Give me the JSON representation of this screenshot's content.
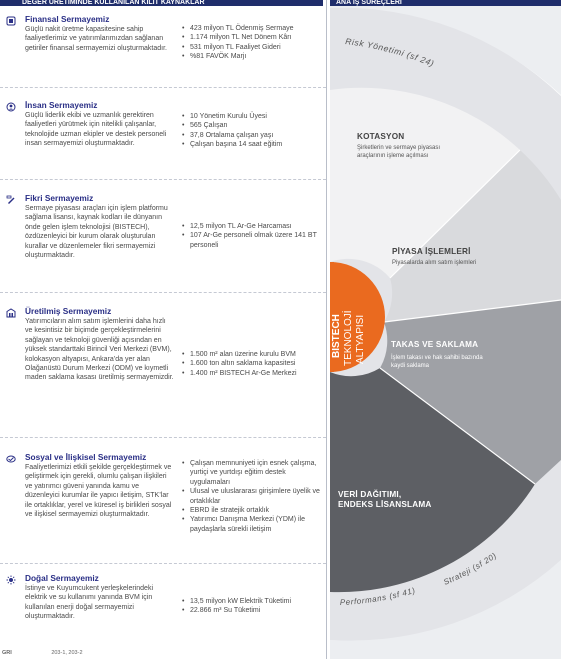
{
  "header": {
    "left_title": "DEĞER ÜRETİMİNDE KULLANILAN KILIT KAYNAKLAR",
    "right_title": "ANA İŞ SÜREÇLERİ"
  },
  "capitals": [
    {
      "icon": "financial-capital-icon",
      "title": "Finansal Sermayemiz",
      "description": "Güçlü nakit üretme kapasitesine sahip faaliyetlerimiz ve yatırımlarımızdan sağlanan getiriler finansal sermayemizi oluşturmaktadır.",
      "kpis": [
        "423 milyon TL Ödenmiş Sermaye",
        "1.174 milyon TL Net Dönem Kârı",
        "531 milyon TL Faaliyet Gideri",
        "%81 FAVÖK Marjı"
      ]
    },
    {
      "icon": "human-capital-icon",
      "title": "İnsan Sermayemiz",
      "description": "Güçlü liderlik ekibi ve uzmanlık gerektiren faaliyetleri yürütmek için nitelikli çalışanlar, teknolojide uzman ekipler ve destek personeli insan sermayemizi oluşturmaktadır.",
      "kpis": [
        "10 Yönetim Kurulu Üyesi",
        "565 Çalışan",
        "37,8 Ortalama çalışan yaşı",
        "Çalışan başına 14 saat eğitim"
      ]
    },
    {
      "icon": "intellectual-capital-icon",
      "title": "Fikri Sermayemiz",
      "description": "Sermaye piyasası araçları için işlem platformu sağlama lisansı, kaynak kodları ile dünyanın önde gelen işlem teknolojisi (BISTECH), özdüzenleyici bir kurum olarak oluşturulan kurallar ve düzenlemeler fikri sermayemizi oluşturmaktadır.",
      "kpis": [
        "12,5 milyon TL Ar-Ge Harcaması",
        "107 Ar-Ge personeli olmak üzere 141 BT personeli"
      ]
    },
    {
      "icon": "manufactured-capital-icon",
      "title": "Üretilmiş Sermayemiz",
      "description": "Yatırımcıların alım satım işlemlerini daha hızlı ve kesintisiz bir biçimde gerçekleştirmelerini sağlayan ve teknoloji güvenliği açısından en yüksek standarttaki Birincil Veri Merkezi (BVM), kolokasyon altyapısı, Ankara’da yer alan Olağanüstü Durum Merkezi (ODM) ve kıymetli maden saklama kasası üretilmiş sermayemizdir.",
      "kpis": [
        "1.500 m² alan üzerine kurulu BVM",
        "1.600 ton altın saklama kapasitesi",
        "1.400 m² BISTECH Ar-Ge Merkezi"
      ]
    },
    {
      "icon": "social-capital-icon",
      "title": "Sosyal ve İlişkisel Sermayemiz",
      "description": "Faaliyetlerimizi etkili şekilde gerçekleştirmek ve geliştirmek için gerekli, olumlu çalışan ilişkileri ve yatırımcı güveni yanında kamu ve düzenleyici kurumlar ile yapıcı iletişim, STK’lar ile ortaklıklar, yerel ve küresel iş birlikleri sosyal ve ilişkisel sermayemizi oluşturmaktadır.",
      "kpis": [
        "Çalışan memnuniyeti için esnek çalışma, yurtiçi ve yurtdışı eğitim destek uygulamaları",
        "Ulusal ve uluslararası girişimlere üyelik ve ortaklıklar",
        "EBRD ile stratejik ortaklık",
        "Yatırımcı Danışma Merkezi (YDM) ile paydaşlarla sürekli iletişim"
      ]
    },
    {
      "icon": "natural-capital-icon",
      "title": "Doğal Sermayemiz",
      "description": "İstinye ve Kuyumcukent yerleşkelerindeki elektrik ve su kullanımı yanında BVM için kullanılan enerji doğal sermayemizi oluşturmaktadır.",
      "kpis": [
        "13,5 milyon kW Elektrik Tüketimi",
        "22.866 m³ Su Tüketimi"
      ]
    }
  ],
  "wheel": {
    "outer_top_text": "Risk Yönetimi (sf 24)",
    "outer_bottom_text": "Performans (sf 41)",
    "outer_bottom_right_text": "Strateji (sf 20)",
    "center_lines": [
      "BISTECH",
      "TEKNOLOJİ",
      "ALTYAPISI"
    ],
    "segments": [
      {
        "title": "KOTASYON",
        "description": "Şirketlerin ve sermaye piyasası araçlarının işleme açılması"
      },
      {
        "title": "PİYASA İŞLEMLERİ",
        "description": "Piyasalarda alım satım işlemleri"
      },
      {
        "title": "TAKAS VE SAKLAMA",
        "description": "İşlem takası ve hak sahibi bazında kaydi saklama"
      },
      {
        "title": "VERİ DAĞITIMI, ENDEKS LİSANSLAMA",
        "description": ""
      }
    ],
    "colors": {
      "outer_ring": "#e7e8eb",
      "kotasyon": "#f1f1f2",
      "piyasa": "#d8d9dc",
      "takas": "#9a9ca1",
      "veri": "#5c5e63",
      "center": "#ea6a1f"
    }
  },
  "footer": {
    "gri_label": "GRI",
    "gri_codes": "203-1, 203-2"
  }
}
